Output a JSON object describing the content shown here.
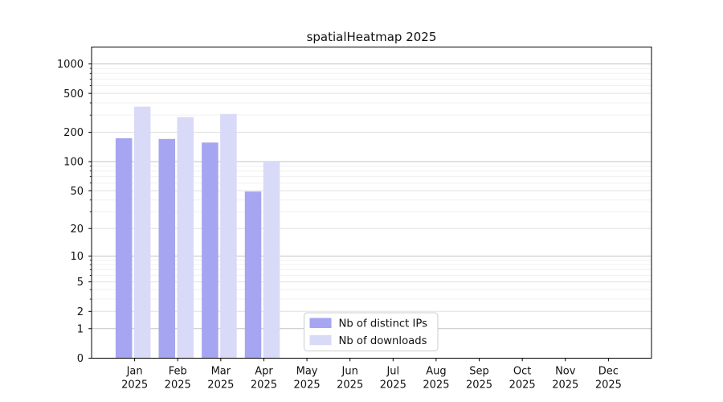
{
  "chart_data": {
    "type": "bar",
    "title": "spatialHeatmap 2025",
    "year_label": "2025",
    "categories": [
      "Jan",
      "Feb",
      "Mar",
      "Apr",
      "May",
      "Jun",
      "Jul",
      "Aug",
      "Sep",
      "Oct",
      "Nov",
      "Dec"
    ],
    "series": [
      {
        "name": "Nb of distinct IPs",
        "color": "#a5a5f1",
        "values": [
          174,
          171,
          157,
          49,
          0,
          0,
          0,
          0,
          0,
          0,
          0,
          0
        ]
      },
      {
        "name": "Nb of downloads",
        "color": "#d9d9f8",
        "values": [
          366,
          286,
          308,
          100,
          0,
          0,
          0,
          0,
          0,
          0,
          0,
          0
        ]
      }
    ],
    "y_ticks": [
      0,
      1,
      2,
      5,
      10,
      20,
      50,
      100,
      200,
      500,
      1000
    ],
    "y_scale": "log10(1+x)",
    "ylim": [
      0,
      1500
    ],
    "xlabel": "",
    "ylabel": "",
    "grid": true,
    "legend_position": "lower center",
    "legend_labels": [
      "Nb of distinct IPs",
      "Nb of downloads"
    ]
  },
  "colors": {
    "bar_distinct_ips": "#a5a5f1",
    "bar_downloads": "#d9d9f8",
    "gridline_decade": "#c3c3c3",
    "gridline_major": "#e0e0e0",
    "gridline_minor": "#f0f0f0",
    "axis": "#000000",
    "legend_border": "#cccccc",
    "background": "#ffffff"
  }
}
